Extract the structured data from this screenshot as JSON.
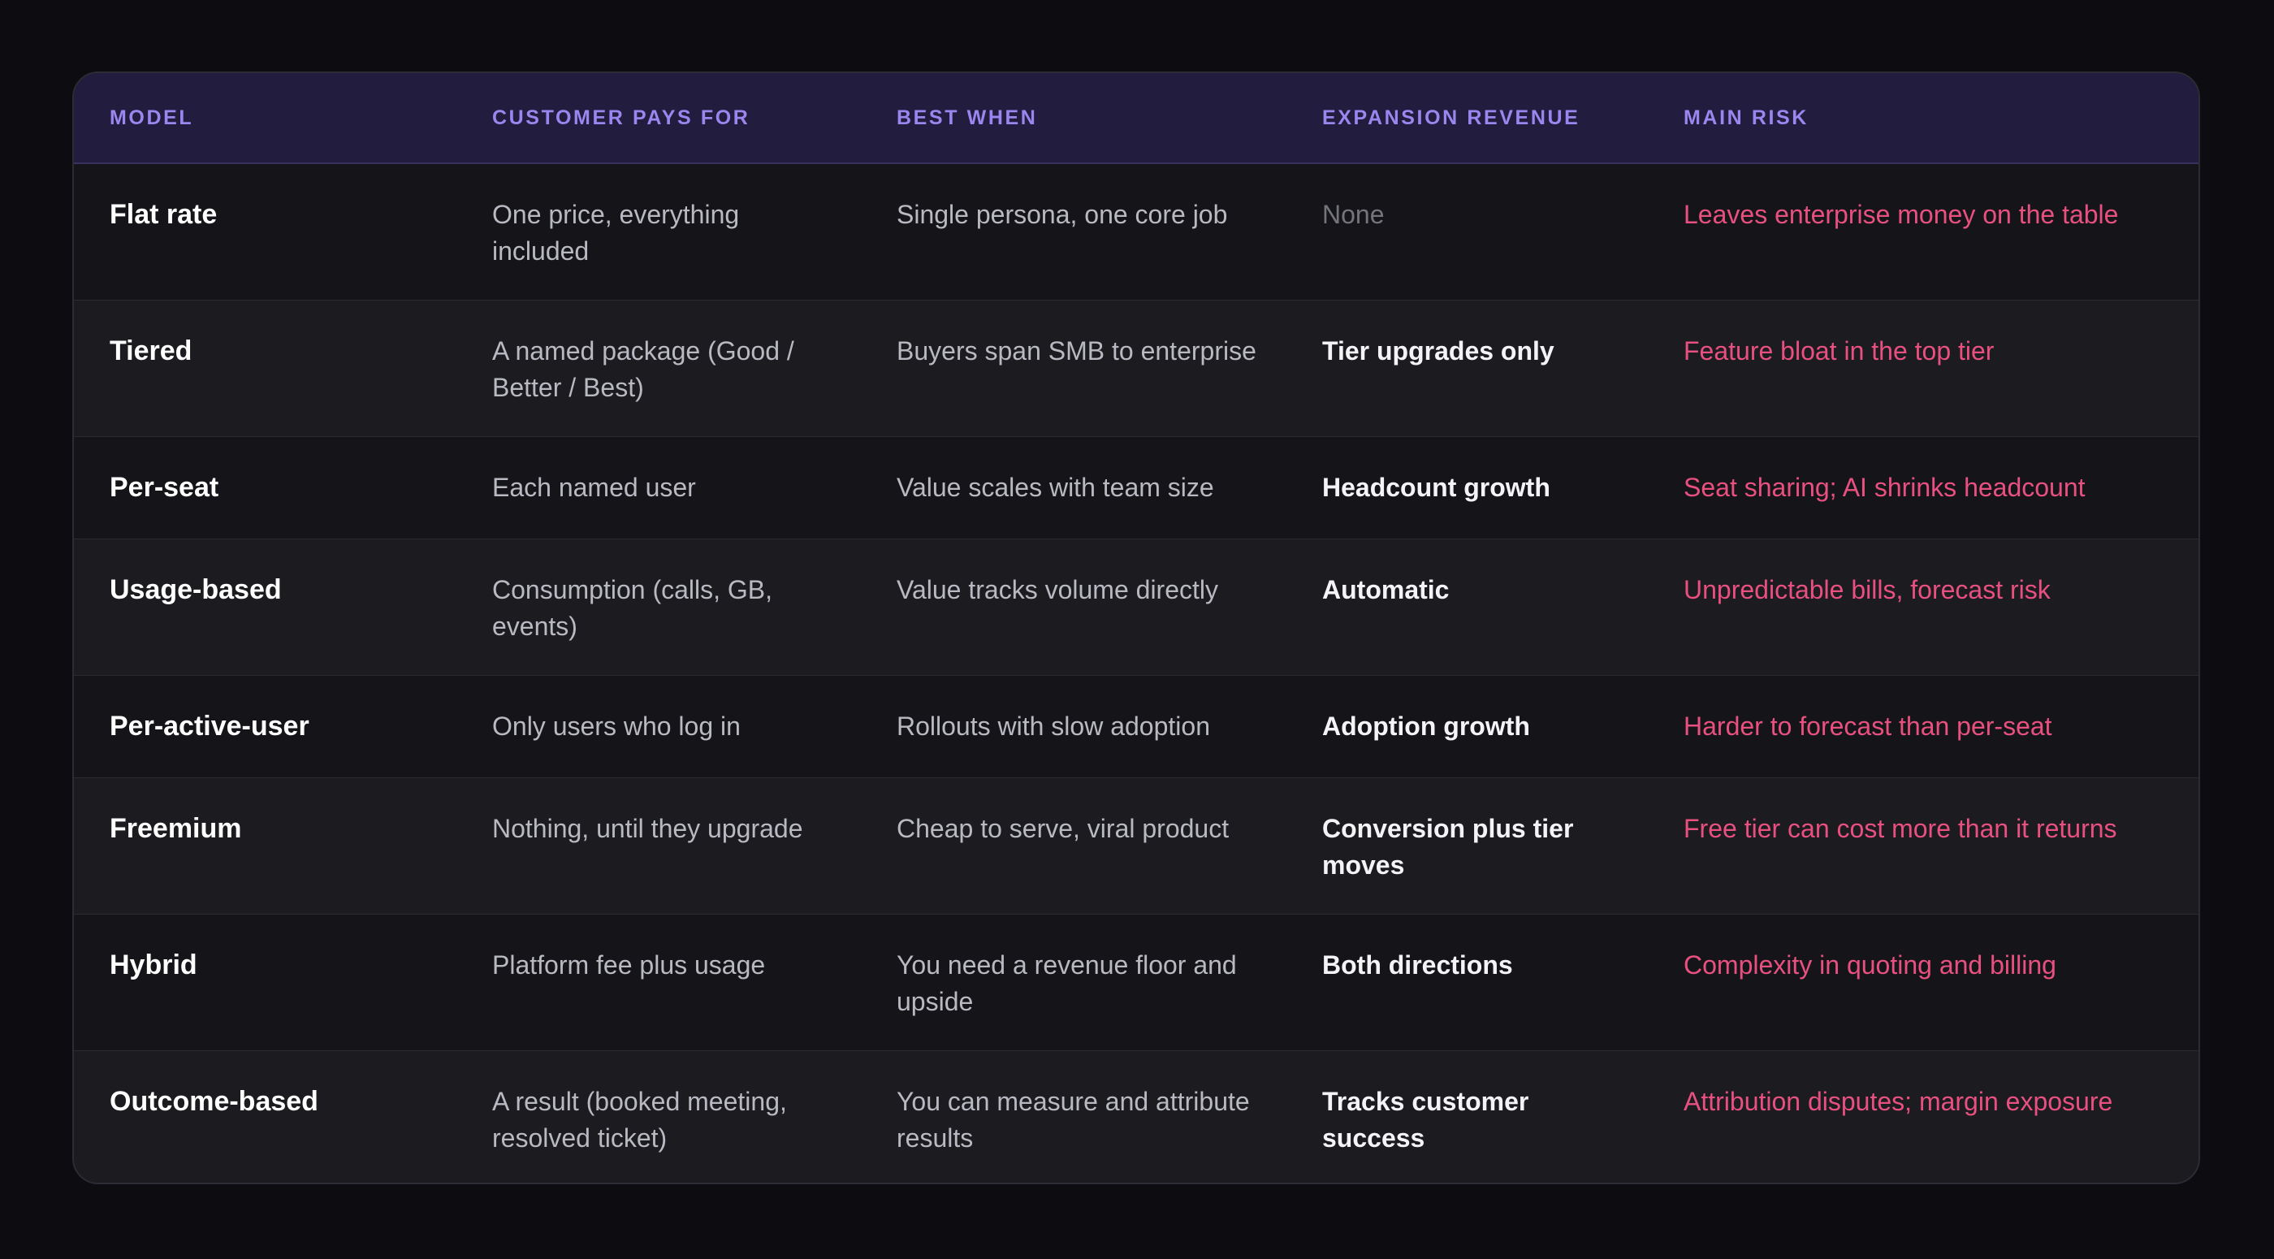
{
  "table": {
    "columns": [
      "Model",
      "Customer pays for",
      "Best when",
      "Expansion revenue",
      "Main risk"
    ],
    "rows": [
      {
        "model": "Flat rate",
        "pays_for": "One price, everything included",
        "best_when": "Single persona, one core job",
        "expansion": "None",
        "risk": "Leaves enterprise money on the table"
      },
      {
        "model": "Tiered",
        "pays_for": "A named package (Good / Better / Best)",
        "best_when": "Buyers span SMB to enterprise",
        "expansion": "Tier upgrades only",
        "risk": "Feature bloat in the top tier"
      },
      {
        "model": "Per-seat",
        "pays_for": "Each named user",
        "best_when": "Value scales with team size",
        "expansion": "Headcount growth",
        "risk": "Seat sharing; AI shrinks headcount"
      },
      {
        "model": "Usage-based",
        "pays_for": "Consumption (calls, GB, events)",
        "best_when": "Value tracks volume directly",
        "expansion": "Automatic",
        "risk": "Unpredictable bills, forecast risk"
      },
      {
        "model": "Per-active-user",
        "pays_for": "Only users who log in",
        "best_when": "Rollouts with slow adoption",
        "expansion": "Adoption growth",
        "risk": "Harder to forecast than per-seat"
      },
      {
        "model": "Freemium",
        "pays_for": "Nothing, until they upgrade",
        "best_when": "Cheap to serve, viral product",
        "expansion": "Conversion plus tier moves",
        "risk": "Free tier can cost more than it returns"
      },
      {
        "model": "Hybrid",
        "pays_for": "Platform fee plus usage",
        "best_when": "You need a revenue floor and upside",
        "expansion": "Both directions",
        "risk": "Complexity in quoting and billing"
      },
      {
        "model": "Outcome-based",
        "pays_for": "A result (booked meeting, resolved ticket)",
        "best_when": "You can measure and attribute results",
        "expansion": "Tracks customer success",
        "risk": "Attribution disputes; margin exposure"
      }
    ]
  },
  "colors": {
    "page_background": "#0d0d11",
    "header_background": "#221d3e",
    "header_text": "#9a86ee",
    "model_text": "#ffffff",
    "risk_text": "#e8507f",
    "muted_text": "#74747c"
  }
}
